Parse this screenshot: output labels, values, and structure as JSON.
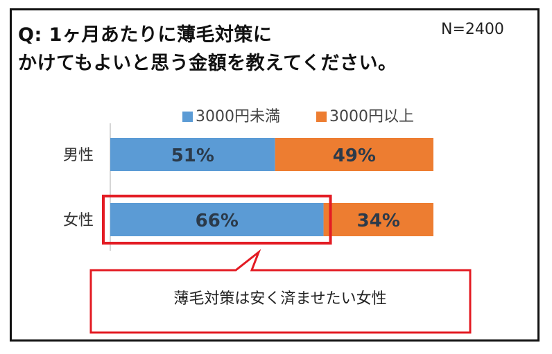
{
  "question": {
    "line1": "Q: 1ヶ月あたりに薄毛対策に",
    "line2": "かけてもよいと思う金額を教えてください。"
  },
  "sample_size": "N=2400",
  "callout": "薄毛対策は安く済ませたい女性",
  "colors": {
    "under_3000": "#5b9bd5",
    "over_3000": "#ed7d31",
    "highlight": "#e31b23",
    "value_label": "#2b3a4a"
  },
  "chart_data": {
    "type": "bar",
    "orientation": "horizontal",
    "stacked": true,
    "percent_stacked": true,
    "categories": [
      "男性",
      "女性"
    ],
    "series": [
      {
        "name": "3000円未満",
        "values": [
          51,
          66
        ],
        "labels": [
          "51%",
          "66%"
        ]
      },
      {
        "name": "3000円以上",
        "values": [
          49,
          34
        ],
        "labels": [
          "49%",
          "34%"
        ]
      }
    ],
    "xlim": [
      0,
      100
    ],
    "legend_position": "top",
    "grid": false,
    "highlighted": {
      "category": "女性",
      "series": "3000円未満"
    }
  }
}
